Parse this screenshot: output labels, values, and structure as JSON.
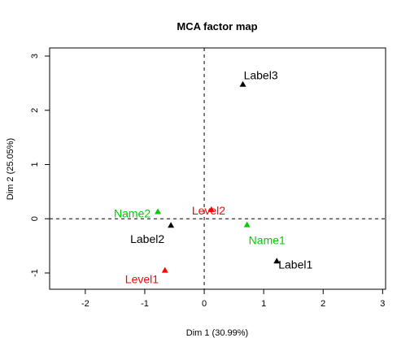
{
  "chart_data": {
    "type": "scatter",
    "title": "MCA factor map",
    "xlabel": "Dim 1 (30.99%)",
    "ylabel": "Dim 2 (25.05%)",
    "xlim": [
      -2.6,
      3.05
    ],
    "ylim": [
      -1.3,
      3.15
    ],
    "x_ticks": [
      -2,
      -1,
      0,
      1,
      2,
      3
    ],
    "y_ticks": [
      -1,
      0,
      1,
      2,
      3
    ],
    "reference_lines": {
      "x": 0,
      "y": 0,
      "style": "dashed"
    },
    "marker": "filled-triangle",
    "grid": false,
    "points": [
      {
        "label": "Label3",
        "x": 0.65,
        "y": 2.48,
        "color": "#000000",
        "label_dx": 2,
        "label_dy": 0.0
      },
      {
        "label": "Level2",
        "x": 0.12,
        "y": 0.17,
        "color": "#ff0000",
        "label_dx": -0.3,
        "label_dy": -0.0
      },
      {
        "label": "Name2",
        "x": -0.78,
        "y": 0.13,
        "color": "#00cc00",
        "label_dx": -0.9,
        "label_dy": -0.0
      },
      {
        "label": "Label2",
        "x": -0.56,
        "y": -0.12,
        "color": "#000000",
        "label_dx": -0.8,
        "label_dy": -0.0
      },
      {
        "label": "Name1",
        "x": 0.72,
        "y": -0.11,
        "color": "#00cc00",
        "label_dx": 0.0,
        "label_dy": -0.0
      },
      {
        "label": "Label1",
        "x": 1.22,
        "y": -0.78,
        "color": "#000000",
        "label_dx": 0.0,
        "label_dy": -0.0
      },
      {
        "label": "Level1",
        "x": -0.66,
        "y": -0.95,
        "color": "#ff0000",
        "label_dx": -0.7,
        "label_dy": -0.0
      }
    ]
  }
}
